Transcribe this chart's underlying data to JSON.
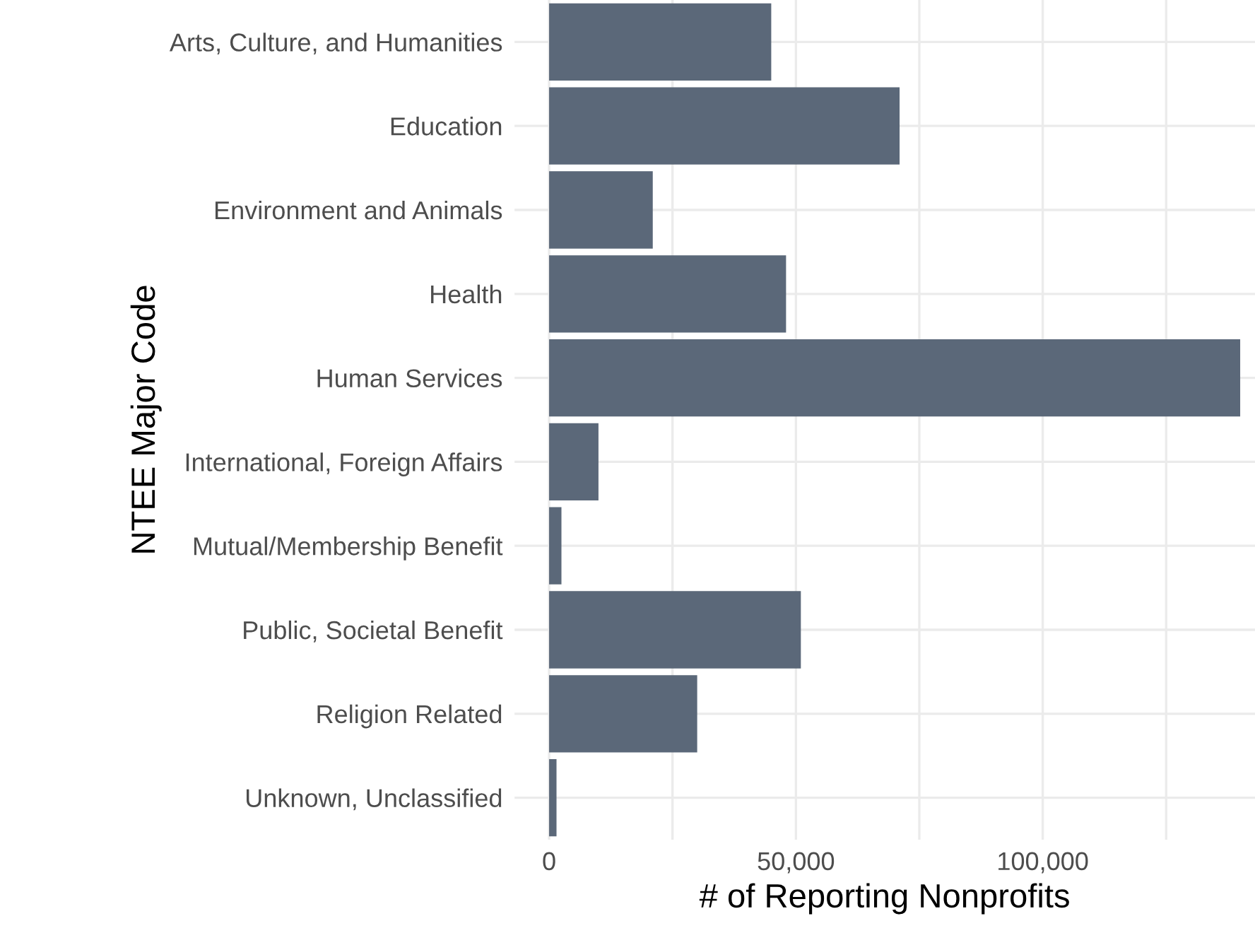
{
  "chart_data": {
    "type": "bar",
    "orientation": "horizontal",
    "xlabel": "# of Reporting Nonprofits",
    "ylabel": "NTEE Major Code",
    "categories": [
      "Arts, Culture, and Humanities",
      "Education",
      "Environment and Animals",
      "Health",
      "Human Services",
      "International, Foreign Affairs",
      "Mutual/Membership Benefit",
      "Public, Societal Benefit",
      "Religion Related",
      "Unknown, Unclassified"
    ],
    "values": [
      45000,
      71000,
      21000,
      48000,
      140000,
      10000,
      2500,
      51000,
      30000,
      1500
    ],
    "color": "#5b6879",
    "xlim": [
      -7000,
      143000
    ],
    "xticks": [
      {
        "value": 0,
        "label": "0"
      },
      {
        "value": 25000,
        "label": null
      },
      {
        "value": 50000,
        "label": "50,000"
      },
      {
        "value": 75000,
        "label": null
      },
      {
        "value": 100000,
        "label": "100,000"
      },
      {
        "value": 125000,
        "label": null
      }
    ],
    "grid": true
  }
}
